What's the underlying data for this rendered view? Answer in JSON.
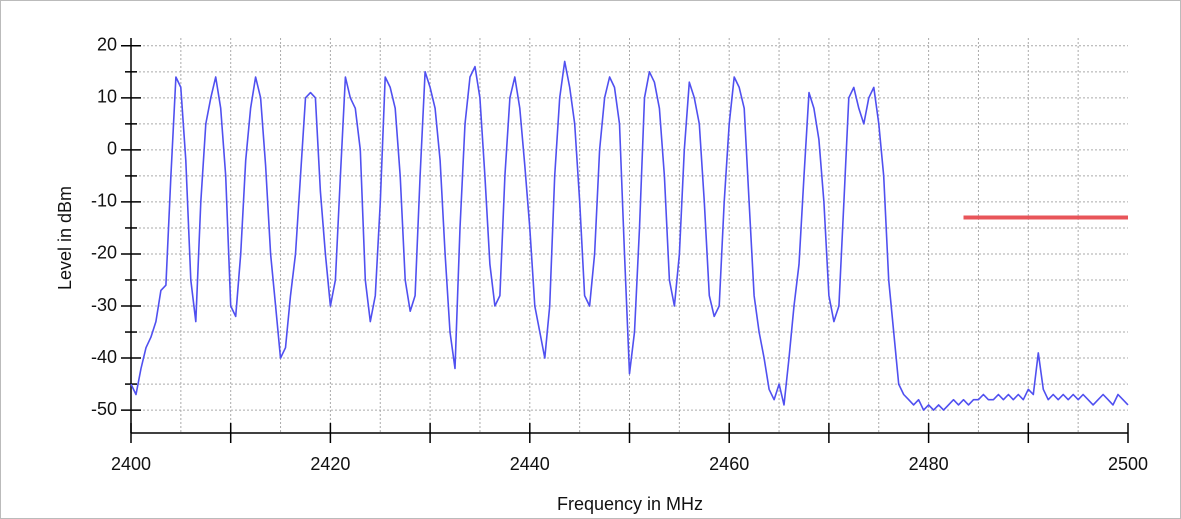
{
  "chart_data": {
    "type": "line",
    "xlabel": "Frequency in MHz",
    "ylabel": "Level in dBm",
    "x": [
      2400,
      2400.5,
      2401,
      2401.5,
      2402,
      2402.5,
      2403,
      2403.5,
      2404,
      2404.5,
      2405,
      2405.5,
      2406,
      2406.5,
      2407,
      2407.5,
      2408,
      2408.5,
      2409,
      2409.5,
      2410,
      2410.5,
      2411,
      2411.5,
      2412,
      2412.5,
      2413,
      2413.5,
      2414,
      2414.5,
      2415,
      2415.5,
      2416,
      2416.5,
      2417,
      2417.5,
      2418,
      2418.5,
      2419,
      2419.5,
      2420,
      2420.5,
      2421,
      2421.5,
      2422,
      2422.5,
      2423,
      2423.5,
      2424,
      2424.5,
      2425,
      2425.5,
      2426,
      2426.5,
      2427,
      2427.5,
      2428,
      2428.5,
      2429,
      2429.5,
      2430,
      2430.5,
      2431,
      2431.5,
      2432,
      2432.5,
      2433,
      2433.5,
      2434,
      2434.5,
      2435,
      2435.5,
      2436,
      2436.5,
      2437,
      2437.5,
      2438,
      2438.5,
      2439,
      2439.5,
      2440,
      2440.5,
      2441,
      2441.5,
      2442,
      2442.5,
      2443,
      2443.5,
      2444,
      2444.5,
      2445,
      2445.5,
      2446,
      2446.5,
      2447,
      2447.5,
      2448,
      2448.5,
      2449,
      2449.5,
      2450,
      2450.5,
      2451,
      2451.5,
      2452,
      2452.5,
      2453,
      2453.5,
      2454,
      2454.5,
      2455,
      2455.5,
      2456,
      2456.5,
      2457,
      2457.5,
      2458,
      2458.5,
      2459,
      2459.5,
      2460,
      2460.5,
      2461,
      2461.5,
      2462,
      2462.5,
      2463,
      2463.5,
      2464,
      2464.5,
      2465,
      2465.5,
      2466,
      2466.5,
      2467,
      2467.5,
      2468,
      2468.5,
      2469,
      2469.5,
      2470,
      2470.5,
      2471,
      2471.5,
      2472,
      2472.5,
      2473,
      2473.5,
      2474,
      2474.5,
      2475,
      2475.5,
      2476,
      2476.5,
      2477,
      2477.5,
      2478,
      2478.5,
      2479,
      2479.5,
      2480,
      2480.5,
      2481,
      2481.5,
      2482,
      2482.5,
      2483,
      2483.5,
      2484,
      2484.5,
      2485,
      2485.5,
      2486,
      2486.5,
      2487,
      2487.5,
      2488,
      2488.5,
      2489,
      2489.5,
      2490,
      2490.5,
      2491,
      2491.5,
      2492,
      2492.5,
      2493,
      2493.5,
      2494,
      2494.5,
      2495,
      2495.5,
      2496,
      2496.5,
      2497,
      2497.5,
      2498,
      2498.5,
      2499,
      2499.5,
      2500
    ],
    "series": [
      {
        "color": "#5050f0",
        "values": [
          -45,
          -47,
          -42,
          -38,
          -36,
          -33,
          -27,
          -26,
          -5,
          14,
          12,
          -2,
          -25,
          -33,
          -10,
          5,
          10,
          14,
          8,
          -5,
          -30,
          -32,
          -20,
          -2,
          8,
          14,
          10,
          -3,
          -20,
          -30,
          -40,
          -38,
          -28,
          -20,
          -5,
          10,
          11,
          10,
          -8,
          -20,
          -30,
          -25,
          -5,
          14,
          10,
          8,
          0,
          -25,
          -33,
          -28,
          -10,
          14,
          12,
          8,
          -5,
          -25,
          -31,
          -28,
          -5,
          15,
          12,
          8,
          -2,
          -20,
          -35,
          -42,
          -15,
          5,
          14,
          16,
          10,
          -5,
          -22,
          -30,
          -28,
          -5,
          10,
          14,
          8,
          -3,
          -15,
          -30,
          -35,
          -40,
          -30,
          -5,
          10,
          17,
          12,
          5,
          -10,
          -28,
          -30,
          -20,
          0,
          10,
          14,
          12,
          5,
          -20,
          -43,
          -35,
          -15,
          10,
          15,
          13,
          8,
          -5,
          -25,
          -30,
          -20,
          0,
          13,
          10,
          5,
          -10,
          -28,
          -32,
          -30,
          -10,
          5,
          14,
          12,
          8,
          -10,
          -28,
          -35,
          -40,
          -46,
          -48,
          -45,
          -49,
          -40,
          -30,
          -22,
          -5,
          11,
          8,
          2,
          -10,
          -28,
          -33,
          -30,
          -10,
          10,
          12,
          8,
          5,
          10,
          12,
          5,
          -5,
          -25,
          -35,
          -45,
          -47,
          -48,
          -49,
          -48,
          -50,
          -49,
          -50,
          -49,
          -50,
          -49,
          -48,
          -49,
          -48,
          -49,
          -48,
          -48,
          -47,
          -48,
          -48,
          -47,
          -48,
          -47,
          -48,
          -47,
          -48,
          -46,
          -47,
          -39,
          -46,
          -48,
          -47,
          -48,
          -47,
          -48,
          -47,
          -48,
          -47,
          -48,
          -49,
          -48,
          -47,
          -48,
          -49,
          -47,
          -48,
          -49
        ]
      }
    ],
    "limit_line": {
      "x": [
        2483.5,
        2500
      ],
      "values": [
        -13,
        -13
      ],
      "color": "#e8555a"
    },
    "xlim": [
      2400,
      2500
    ],
    "xticks": [
      2400,
      2420,
      2440,
      2460,
      2480,
      2500
    ],
    "xminorticks": [
      2410,
      2430,
      2450,
      2470,
      2490
    ],
    "xgrid": [
      2405,
      2410,
      2415,
      2420,
      2425,
      2430,
      2435,
      2440,
      2445,
      2450,
      2455,
      2460,
      2465,
      2470,
      2475,
      2480,
      2485,
      2490,
      2495
    ],
    "ylim": [
      -54.4,
      21.5
    ],
    "yticks": [
      20,
      10,
      0,
      -10,
      -20,
      -30,
      -40,
      -50
    ],
    "yminorticks": [
      15,
      5,
      -5,
      -15,
      -25,
      -35,
      -45
    ],
    "grid": true
  }
}
